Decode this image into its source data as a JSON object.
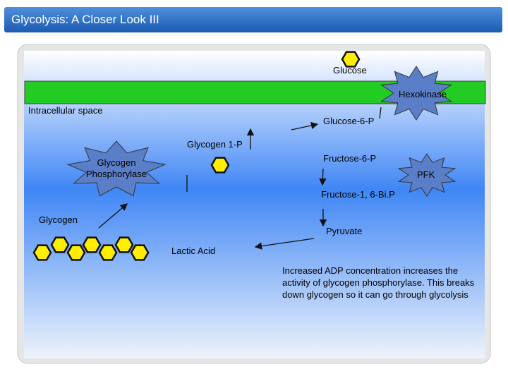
{
  "header": {
    "title": "Glycolysis: A Closer Look III"
  },
  "labels": {
    "glucose": "Glucose",
    "hexokinase": "Hexokinase",
    "intracellular_space": "Intracellular space",
    "glucose_6_p": "Glucose-6-P",
    "glycogen_1_p": "Glycogen 1-P",
    "glycogen_phosphorylase": "Glycogen Phosphorylase",
    "fructose_6_p": "Fructose-6-P",
    "pfk": "PFK",
    "fructose_1_6_bip": "Fructose-1, 6-Bi.P",
    "glycogen": "Glycogen",
    "pyruvate": "Pyruvate",
    "lactic_acid": "Lactic Acid"
  },
  "note": "Increased ADP concentration increases the activity of glycogen phosphorylase. This breaks down glycogen so it can go through glycolysis"
}
